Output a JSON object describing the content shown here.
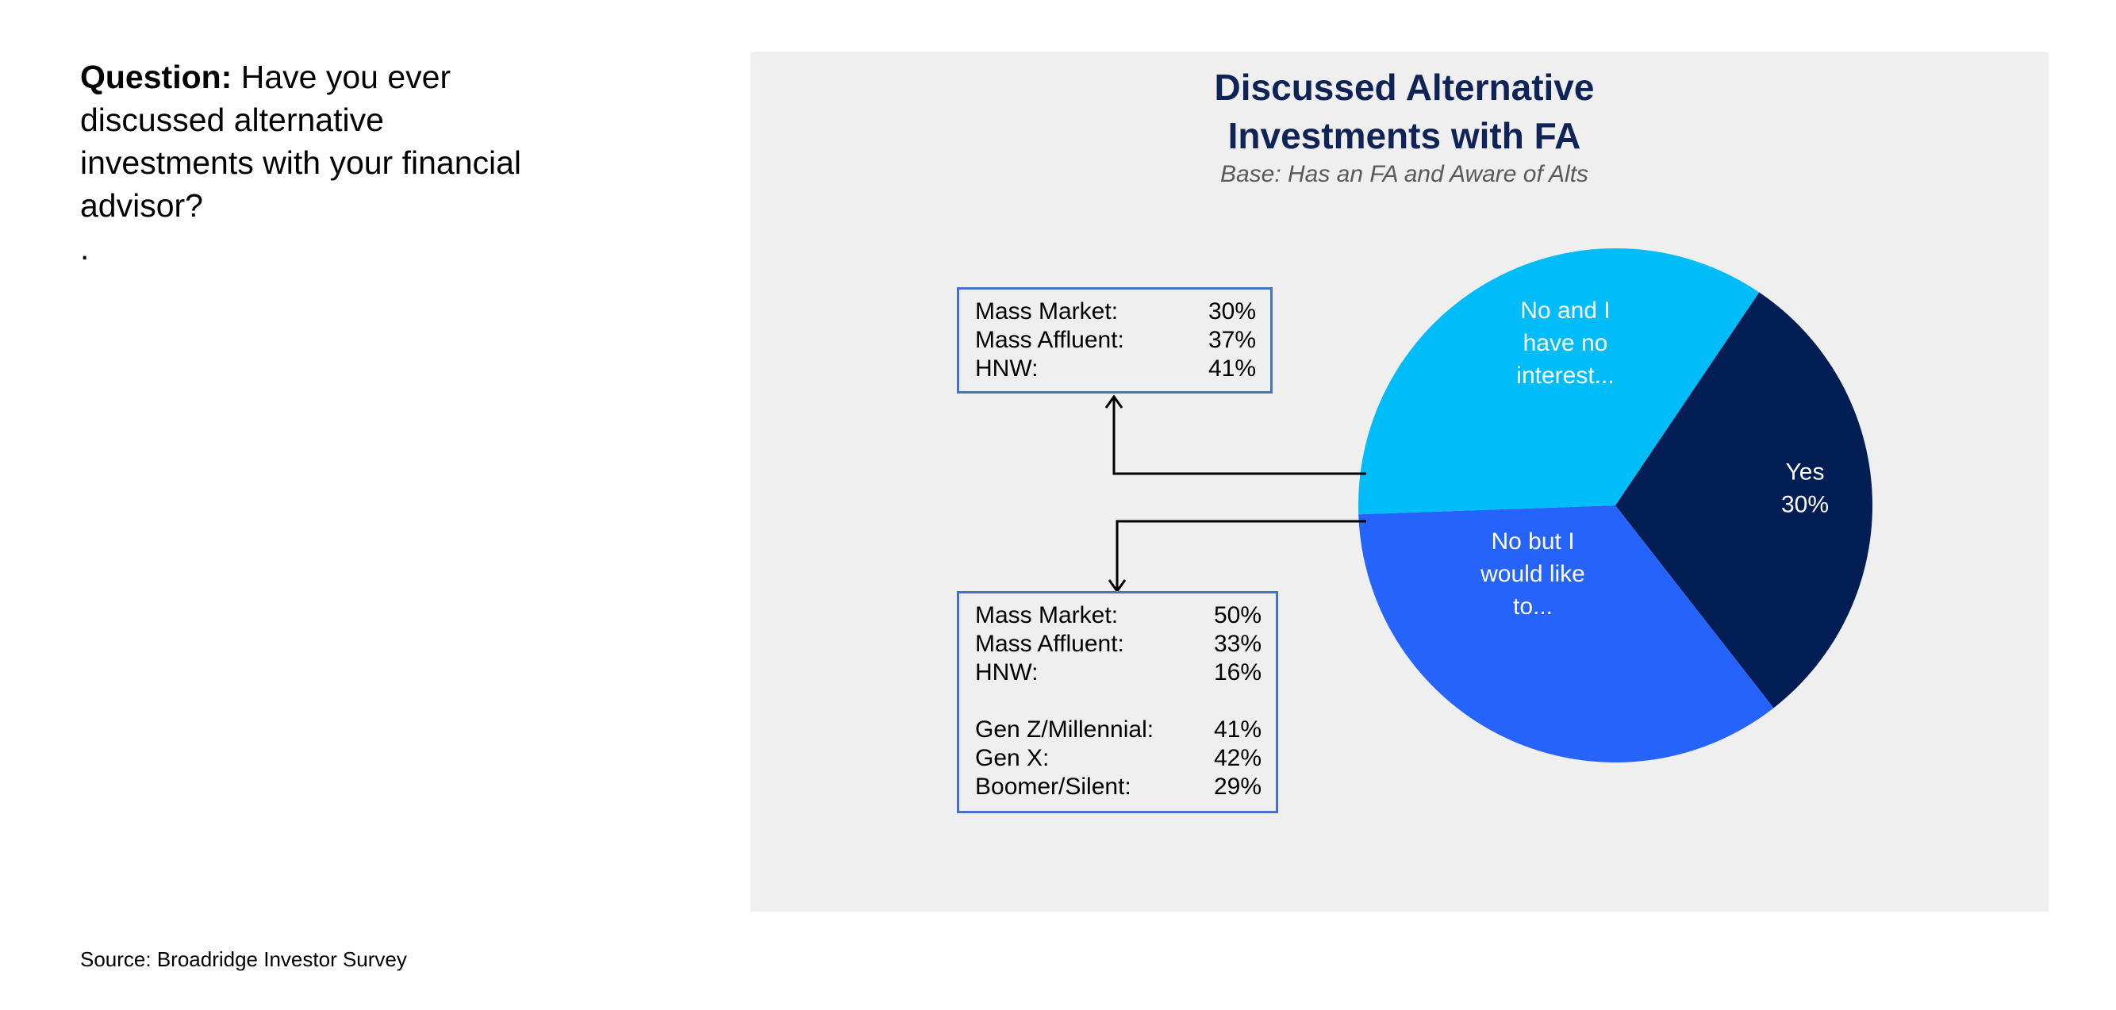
{
  "question": {
    "label": "Question:",
    "text": "Have you ever discussed alternative investments with your financial advisor?",
    "trailing": "."
  },
  "chart_data": {
    "type": "pie",
    "title": "Discussed Alternative Investments with FA",
    "title_lines": [
      "Discussed Alternative",
      "Investments with FA"
    ],
    "subtitle": "Base: Has an FA and Aware of Alts",
    "slices": [
      {
        "label_lines": [
          "Yes",
          "30%"
        ],
        "value": 30,
        "color": "#021e54"
      },
      {
        "label_lines": [
          "No but I",
          "would like",
          "to..."
        ],
        "value": 35,
        "color": "#2563fa"
      },
      {
        "label_lines": [
          "No and I",
          "have no",
          "interest..."
        ],
        "value": 35,
        "color": "#00bdfa"
      }
    ],
    "legend": "none"
  },
  "callouts": {
    "top": {
      "rows": [
        {
          "label": "Mass Market:",
          "value": "30%"
        },
        {
          "label": "Mass Affluent:",
          "value": "37%"
        },
        {
          "label": "HNW:",
          "value": "41%"
        }
      ]
    },
    "bottom": {
      "groups": [
        [
          {
            "label": "Mass Market:",
            "value": "50%"
          },
          {
            "label": "Mass Affluent:",
            "value": "33%"
          },
          {
            "label": "HNW:",
            "value": "16%"
          }
        ],
        [
          {
            "label": "Gen Z/Millennial:",
            "value": "41%"
          },
          {
            "label": "Gen X:",
            "value": "42%"
          },
          {
            "label": "Boomer/Silent:",
            "value": "29%"
          }
        ]
      ]
    }
  },
  "source": "Source: Broadridge Investor Survey"
}
